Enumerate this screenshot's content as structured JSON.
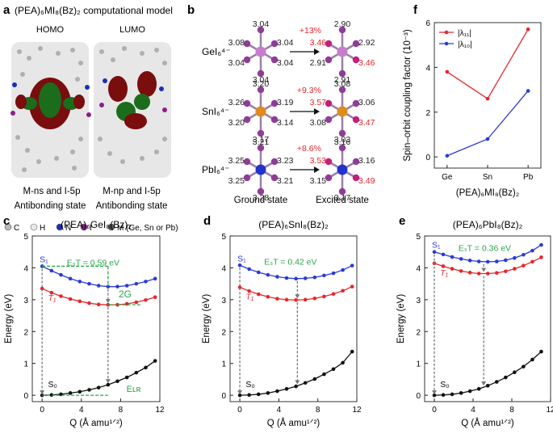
{
  "panel_a": {
    "letter": "a",
    "title": "(PEA)₆MI₈(Bz)₂ computational model",
    "homo": {
      "label": "HOMO",
      "orbital": "M-ns and I-5p",
      "state": "Antibonding state"
    },
    "lumo": {
      "label": "LUMO",
      "orbital": "M-np and I-5p",
      "state": "Antibonding state"
    },
    "legend": [
      {
        "symbol": "C",
        "color": "#b8b8b8"
      },
      {
        "symbol": "H",
        "color": "#e8e8e8"
      },
      {
        "symbol": "N",
        "color": "#1c2fb3"
      },
      {
        "symbol": "I",
        "color": "#8e1d8c"
      },
      {
        "symbol": "M (Ge, Sn or Pb)",
        "color": "#555555"
      }
    ]
  },
  "panel_b": {
    "letter": "b",
    "ground_label": "Ground state",
    "excited_label": "Excited state",
    "rows": [
      {
        "name": "GeI₆⁴⁻",
        "center_color": "#c77dcc",
        "ground": {
          "top": "3.04",
          "bottom": "3.04",
          "ul": "3.08",
          "ll": "3.04",
          "ur": "3.04",
          "lr": "3.04"
        },
        "change": "+13%",
        "excited": {
          "top": "2.90",
          "bottom": "2.91",
          "ul": "3.46",
          "ll": "2.91",
          "ur": "2.92",
          "lr": "3.46"
        }
      },
      {
        "name": "SnI₆⁴⁻",
        "center_color": "#e08b1c",
        "ground": {
          "top": "3.20",
          "bottom": "3.17",
          "ul": "3.26",
          "ll": "3.20",
          "ur": "3.19",
          "lr": "3.14"
        },
        "change": "+9.3%",
        "excited": {
          "top": "3.08",
          "bottom": "3.03",
          "ul": "3.57",
          "ll": "3.08",
          "ur": "3.06",
          "lr": "3.47"
        }
      },
      {
        "name": "PbI₆⁴⁻",
        "center_color": "#2233cc",
        "ground": {
          "top": "3.21",
          "bottom": "3.28",
          "ul": "3.25",
          "ll": "3.25",
          "ur": "3.23",
          "lr": "3.21"
        },
        "change": "+8.6%",
        "excited": {
          "top": "3.16",
          "bottom": "3.17",
          "ul": "3.53",
          "ll": "3.15",
          "ur": "3.16",
          "lr": "3.49"
        }
      }
    ]
  },
  "chart_data": [
    {
      "id": "f",
      "letter": "f",
      "type": "line",
      "title": "",
      "xlabel": "(PEA)₆MI₈(Bz)₂",
      "ylabel": "Spin–orbit coupling factor (10⁻³)",
      "categories": [
        "Ge",
        "Sn",
        "Pb"
      ],
      "ylim": [
        -0.5,
        6
      ],
      "yticks": [
        0,
        2,
        4,
        6
      ],
      "series": [
        {
          "name": "|λ₁₁|",
          "color": "#e5262b",
          "values": [
            3.8,
            2.6,
            5.7
          ]
        },
        {
          "name": "|λ₁₀|",
          "color": "#2a3ad6",
          "values": [
            0.05,
            0.8,
            2.95
          ]
        }
      ]
    },
    {
      "id": "c",
      "letter": "c",
      "type": "line",
      "title": "(PEA)₆GeI₈(Bz)₂",
      "xlabel": "Q (Å amu¹ᐟ²)",
      "ylabel": "Energy (eV)",
      "xlim": [
        -1,
        12
      ],
      "ylim": [
        -0.2,
        5
      ],
      "xticks": [
        0,
        4,
        8,
        12
      ],
      "yticks": [
        0,
        1,
        2,
        3,
        4,
        5
      ],
      "series": [
        {
          "name": "S₁",
          "color": "#2a3ad6",
          "x": [
            0,
            0.96,
            1.92,
            2.88,
            3.84,
            4.8,
            5.76,
            6.72,
            7.68,
            8.64,
            9.6,
            10.56,
            11.52
          ],
          "y": [
            4.05,
            3.91,
            3.78,
            3.66,
            3.57,
            3.5,
            3.44,
            3.41,
            3.41,
            3.44,
            3.5,
            3.57,
            3.66
          ]
        },
        {
          "name": "T₁",
          "color": "#e5262b",
          "x": [
            0,
            0.96,
            1.92,
            2.88,
            3.84,
            4.8,
            5.76,
            6.72,
            7.68,
            8.64,
            9.6,
            10.56,
            11.52
          ],
          "y": [
            3.35,
            3.22,
            3.11,
            3.02,
            2.95,
            2.89,
            2.85,
            2.84,
            2.84,
            2.87,
            2.92,
            2.99,
            3.08
          ]
        },
        {
          "name": "S₀",
          "color": "#111111",
          "x": [
            0,
            0.96,
            1.92,
            2.88,
            3.84,
            4.8,
            5.76,
            6.72,
            7.68,
            8.64,
            9.6,
            10.56,
            11.52
          ],
          "y": [
            0,
            0.01,
            0.03,
            0.07,
            0.11,
            0.17,
            0.24,
            0.33,
            0.44,
            0.56,
            0.71,
            0.87,
            1.08
          ]
        }
      ],
      "annotations": {
        "est": "EₛT = 0.59 eV",
        "extra": "2G",
        "elr": "Eʟʀ",
        "s1_label": "S₁",
        "t1_label": "T₁",
        "s0_label": "S₀"
      },
      "min_q": 6.72
    },
    {
      "id": "d",
      "letter": "d",
      "type": "line",
      "title": "(PEA)₆SnI₈(Bz)₂",
      "xlabel": "Q (Å amu¹ᐟ²)",
      "ylabel": "Energy (eV)",
      "xlim": [
        -1,
        12
      ],
      "ylim": [
        -0.2,
        5
      ],
      "xticks": [
        0,
        4,
        8,
        12
      ],
      "yticks": [
        0,
        1,
        2,
        3,
        4,
        5
      ],
      "series": [
        {
          "name": "S₁",
          "color": "#2a3ad6",
          "x": [
            0,
            0.96,
            1.92,
            2.88,
            3.84,
            4.8,
            5.76,
            6.72,
            7.68,
            8.64,
            9.6,
            10.56,
            11.52
          ],
          "y": [
            4.08,
            3.96,
            3.86,
            3.78,
            3.72,
            3.68,
            3.66,
            3.67,
            3.7,
            3.76,
            3.83,
            3.93,
            4.07
          ]
        },
        {
          "name": "T₁",
          "color": "#e5262b",
          "x": [
            0,
            0.96,
            1.92,
            2.88,
            3.84,
            4.8,
            5.76,
            6.72,
            7.68,
            8.64,
            9.6,
            10.56,
            11.52
          ],
          "y": [
            3.39,
            3.27,
            3.17,
            3.09,
            3.03,
            3.0,
            2.99,
            3.0,
            3.04,
            3.1,
            3.18,
            3.28,
            3.41
          ]
        },
        {
          "name": "S₀",
          "color": "#111111",
          "x": [
            0,
            0.96,
            1.92,
            2.88,
            3.84,
            4.8,
            5.76,
            6.72,
            7.68,
            8.64,
            9.6,
            10.56,
            11.52
          ],
          "y": [
            0,
            0.01,
            0.03,
            0.07,
            0.13,
            0.2,
            0.28,
            0.39,
            0.51,
            0.66,
            0.82,
            1.02,
            1.37
          ]
        }
      ],
      "annotations": {
        "est": "EₛT = 0.42 eV",
        "s1_label": "S₁",
        "t1_label": "T₁",
        "s0_label": "S₀"
      },
      "min_q": 5.9
    },
    {
      "id": "e",
      "letter": "e",
      "type": "line",
      "title": "(PEA)₆PbI₈(Bz)₂",
      "xlabel": "Q (Å amu¹ᐟ²)",
      "ylabel": "Energy (eV)",
      "xlim": [
        -1,
        12
      ],
      "ylim": [
        -0.2,
        5
      ],
      "xticks": [
        0,
        4,
        8,
        12
      ],
      "yticks": [
        0,
        1,
        2,
        3,
        4,
        5
      ],
      "series": [
        {
          "name": "S₁",
          "color": "#2a3ad6",
          "x": [
            0,
            0.92,
            1.84,
            2.76,
            3.68,
            4.6,
            5.52,
            6.44,
            7.36,
            8.28,
            9.2,
            10.12,
            11.04
          ],
          "y": [
            4.5,
            4.42,
            4.34,
            4.28,
            4.23,
            4.2,
            4.19,
            4.2,
            4.24,
            4.31,
            4.41,
            4.54,
            4.72
          ]
        },
        {
          "name": "T₁",
          "color": "#e5262b",
          "x": [
            0,
            0.92,
            1.84,
            2.76,
            3.68,
            4.6,
            5.52,
            6.44,
            7.36,
            8.28,
            9.2,
            10.12,
            11.04
          ],
          "y": [
            4.14,
            4.05,
            3.97,
            3.9,
            3.85,
            3.82,
            3.82,
            3.84,
            3.89,
            3.97,
            4.07,
            4.19,
            4.33
          ]
        },
        {
          "name": "S₀",
          "color": "#111111",
          "x": [
            0,
            0.92,
            1.84,
            2.76,
            3.68,
            4.6,
            5.52,
            6.44,
            7.36,
            8.28,
            9.2,
            10.12,
            11.04
          ],
          "y": [
            0,
            0.01,
            0.03,
            0.07,
            0.13,
            0.2,
            0.3,
            0.42,
            0.56,
            0.72,
            0.9,
            1.12,
            1.37
          ]
        }
      ],
      "annotations": {
        "est": "EₛT = 0.36 eV",
        "s1_label": "S₁",
        "t1_label": "T₁",
        "s0_label": "S₀"
      },
      "min_q": 5.1
    }
  ]
}
